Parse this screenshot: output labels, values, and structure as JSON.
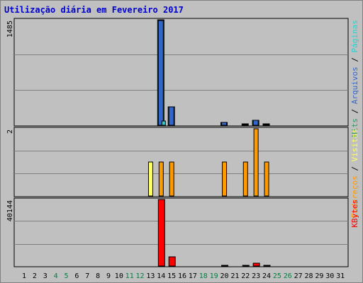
{
  "title": "Utilização diária em Fevereiro 2017",
  "chart_data": [
    {
      "type": "bar",
      "panel": "top",
      "max_label": "1485",
      "ylim": [
        0,
        1485
      ],
      "grid": true,
      "legend": [
        {
          "text": "Hits",
          "color": "#339966"
        },
        {
          "text": "/",
          "color": "#000000"
        },
        {
          "text": "Arquivos",
          "color": "#3366cc"
        },
        {
          "text": "/",
          "color": "#000000"
        },
        {
          "text": "Páginas",
          "color": "#33cccc"
        }
      ],
      "series": [
        {
          "name": "Hits",
          "color": "#339966",
          "values": [
            {
              "day": 14,
              "value": 1485
            },
            {
              "day": 15,
              "value": 260
            },
            {
              "day": 20,
              "value": 40
            },
            {
              "day": 22,
              "value": 15
            },
            {
              "day": 23,
              "value": 70
            },
            {
              "day": 24,
              "value": 15
            }
          ]
        },
        {
          "name": "Arquivos",
          "color": "#3366cc",
          "values": [
            {
              "day": 14,
              "value": 1480
            },
            {
              "day": 15,
              "value": 255
            },
            {
              "day": 20,
              "value": 35
            },
            {
              "day": 22,
              "value": 10
            },
            {
              "day": 23,
              "value": 65
            },
            {
              "day": 24,
              "value": 10
            }
          ]
        },
        {
          "name": "Páginas",
          "color": "#33cccc",
          "values": [
            {
              "day": 14,
              "value": 60
            }
          ]
        }
      ]
    },
    {
      "type": "bar",
      "panel": "middle",
      "max_label": "2",
      "ylim": [
        0,
        2
      ],
      "grid": true,
      "legend": [
        {
          "text": "Endereços",
          "color": "#ff9900"
        },
        {
          "text": "/",
          "color": "#000000"
        },
        {
          "text": "Visitas",
          "color": "#ffff66"
        }
      ],
      "series": [
        {
          "name": "Visitas",
          "color": "#ffff66",
          "values": [
            {
              "day": 13,
              "value": 1
            }
          ]
        },
        {
          "name": "Endereços",
          "color": "#ff9900",
          "values": [
            {
              "day": 14,
              "value": 1
            },
            {
              "day": 15,
              "value": 1
            },
            {
              "day": 20,
              "value": 1
            },
            {
              "day": 22,
              "value": 1
            },
            {
              "day": 23,
              "value": 2
            },
            {
              "day": 24,
              "value": 1
            }
          ]
        }
      ]
    },
    {
      "type": "bar",
      "panel": "bottom",
      "max_label": "40144",
      "ylim": [
        0,
        40144
      ],
      "grid": true,
      "legend": [
        {
          "text": "KBytes",
          "color": "#ff0000"
        }
      ],
      "series": [
        {
          "name": "KBytes",
          "color": "#ff0000",
          "values": [
            {
              "day": 14,
              "value": 40144
            },
            {
              "day": 15,
              "value": 5600
            },
            {
              "day": 20,
              "value": 500
            },
            {
              "day": 22,
              "value": 400
            },
            {
              "day": 23,
              "value": 1800
            },
            {
              "day": 24,
              "value": 400
            }
          ]
        }
      ]
    }
  ],
  "x_axis": {
    "days": [
      "1",
      "2",
      "3",
      "4",
      "5",
      "6",
      "7",
      "8",
      "9",
      "10",
      "11",
      "12",
      "13",
      "14",
      "15",
      "16",
      "17",
      "18",
      "19",
      "20",
      "21",
      "22",
      "23",
      "24",
      "25",
      "26",
      "27",
      "28",
      "29",
      "30",
      "31"
    ],
    "weekend_days": [
      4,
      5,
      11,
      12,
      18,
      19,
      25,
      26
    ],
    "weekend_color": "#008040",
    "weekday_color": "#000000"
  }
}
